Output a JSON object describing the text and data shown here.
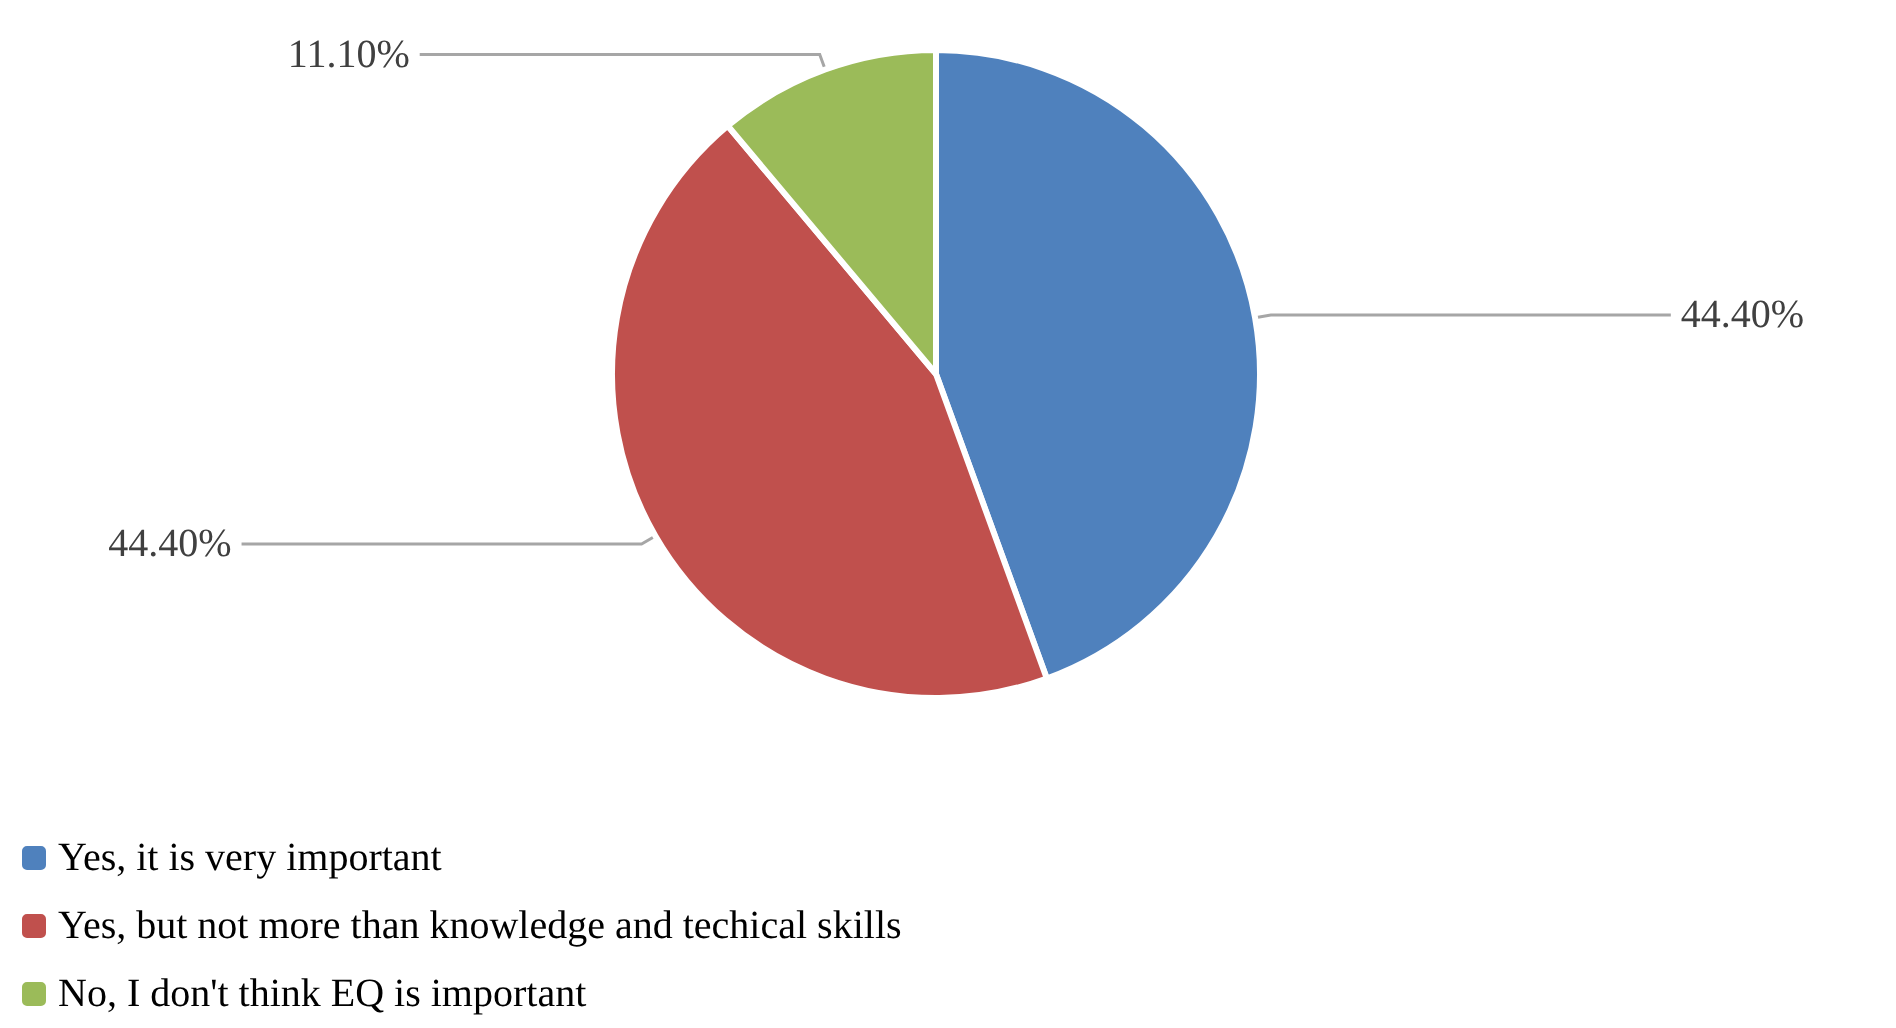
{
  "chart_data": {
    "type": "pie",
    "categories": [
      "Yes, it is very important",
      "Yes, but not more than knowledge and techical skills",
      "No, I don't think EQ is important"
    ],
    "values": [
      44.4,
      44.4,
      11.1
    ],
    "value_labels": [
      "44.40%",
      "44.40%",
      "11.10%"
    ],
    "colors": [
      "#4f81bd",
      "#c0504d",
      "#9bbb59"
    ],
    "legend": "bottom left"
  }
}
